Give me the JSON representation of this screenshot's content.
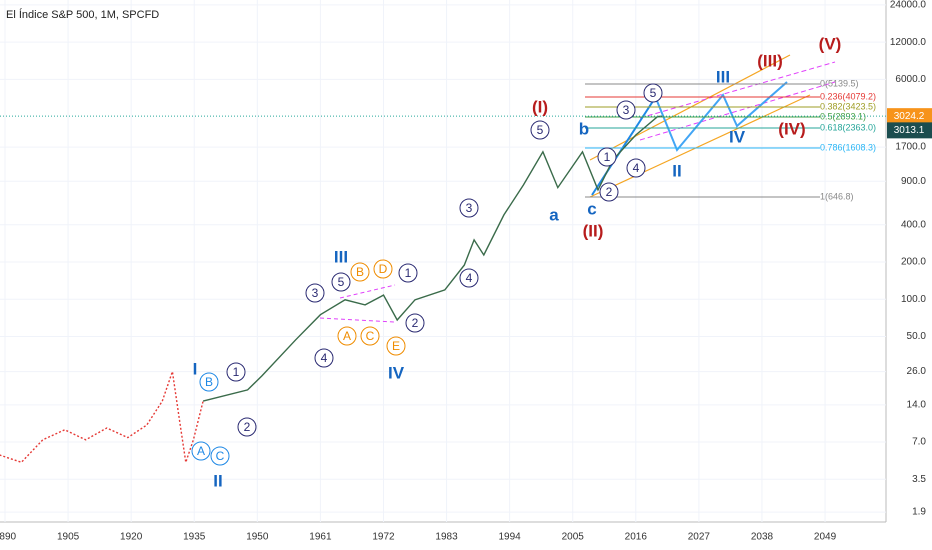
{
  "chart_data": {
    "type": "line",
    "title": "El Índice S&P 500, 1M, SPCFD",
    "log_scale": true,
    "ylim": [
      1.58,
      26300
    ],
    "yticks": [
      {
        "value": 24000,
        "label": "24000.0"
      },
      {
        "value": 12000,
        "label": "12000.0"
      },
      {
        "value": 6000,
        "label": "6000.0"
      },
      {
        "value": 1700,
        "label": "1700.0"
      },
      {
        "value": 900,
        "label": "900.0"
      },
      {
        "value": 400,
        "label": "400.0"
      },
      {
        "value": 200,
        "label": "200.0"
      },
      {
        "value": 100,
        "label": "100.0"
      },
      {
        "value": 50,
        "label": "50.0"
      },
      {
        "value": 26,
        "label": "26.0"
      },
      {
        "value": 14,
        "label": "14.0"
      },
      {
        "value": 7,
        "label": "7.0"
      },
      3.5,
      1.9
    ],
    "xticks": [
      1890,
      1905,
      1920,
      1935,
      1950,
      1961,
      1972,
      1983,
      1994,
      2005,
      2016,
      2027,
      2038,
      2049
    ],
    "series": [
      {
        "color": "#e53935",
        "dashed": true,
        "x": [
          1888.7,
          1893.9,
          1899,
          1904.2,
          1909.2,
          1914.2,
          1919.2,
          1923.7,
          1927.4,
          1929.8,
          1931.6,
          1933,
          1934.8,
          1937.1
        ],
        "values": [
          5.5,
          4.8,
          7.3,
          8.8,
          7.3,
          9.1,
          7.6,
          9.6,
          15,
          26,
          10,
          4.8,
          7.3,
          15
        ]
      },
      {
        "color": "#3a6b4a",
        "dashed": false,
        "x": [
          1937.1,
          1947.7,
          1950.8,
          1956.7,
          1961,
          1965.3,
          1968.8,
          1972,
          1974.4,
          1977.5,
          1982.7,
          1986.1,
          1987.8,
          1989.5,
          1993,
          1996.4,
          1999.8,
          2002.4,
          2006.7,
          2009.4,
          2012,
          2016,
          2019.8,
          2020.6
        ],
        "values": [
          15,
          18.5,
          24,
          47,
          75,
          99,
          90,
          108,
          68,
          99,
          119,
          189,
          302,
          228,
          481,
          840,
          1556,
          800,
          1556,
          766,
          1340,
          2131,
          3000,
          3024
        ]
      }
    ],
    "last_price": 3024.2,
    "last_price_2": 3013.1,
    "fib_levels": [
      "0(5139.5)",
      "0.236(4079.2)",
      "0.382(3423.5)",
      "0.5(2893.1)",
      "0.618(2363.0)",
      "0.786(1608.3)",
      "1(646.8)"
    ],
    "annotations": [
      "3",
      "5",
      "1",
      "2",
      "4",
      "3",
      "4",
      "1",
      "2",
      "5",
      "1",
      "2",
      "3",
      "4",
      "5",
      "B",
      "A",
      "C",
      "B",
      "D",
      "A",
      "C",
      "E",
      "I",
      "II",
      "III",
      "IV",
      "a",
      "b",
      "c",
      "II",
      "III",
      "IV",
      "(I)",
      "(II)",
      "(III)",
      "(V)",
      "(IV)"
    ]
  }
}
